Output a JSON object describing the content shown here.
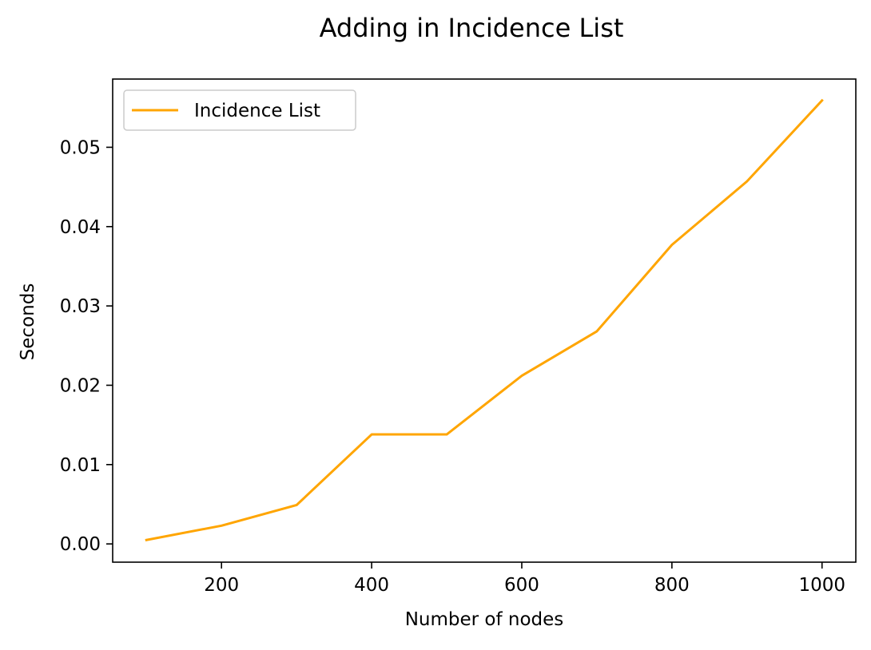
{
  "chart_data": {
    "type": "line",
    "title": "Adding in Incidence List",
    "xlabel": "Number of nodes",
    "ylabel": "Seconds",
    "x": [
      100,
      200,
      300,
      400,
      500,
      600,
      700,
      800,
      900,
      1000
    ],
    "series": [
      {
        "name": "Incidence List",
        "color": "#ffa500",
        "values": [
          0.0005,
          0.0023,
          0.0049,
          0.0138,
          0.0138,
          0.0212,
          0.0268,
          0.0377,
          0.0457,
          0.0559
        ]
      }
    ],
    "xlim": [
      55,
      1045
    ],
    "ylim": [
      -0.0023,
      0.0586
    ],
    "xticks": [
      200,
      400,
      600,
      800,
      1000
    ],
    "xtick_labels": [
      "200",
      "400",
      "600",
      "800",
      "1000"
    ],
    "yticks": [
      0.0,
      0.01,
      0.02,
      0.03,
      0.04,
      0.05
    ],
    "ytick_labels": [
      "0.00",
      "0.01",
      "0.02",
      "0.03",
      "0.04",
      "0.05"
    ],
    "grid": false,
    "legend_position": "upper-left"
  }
}
